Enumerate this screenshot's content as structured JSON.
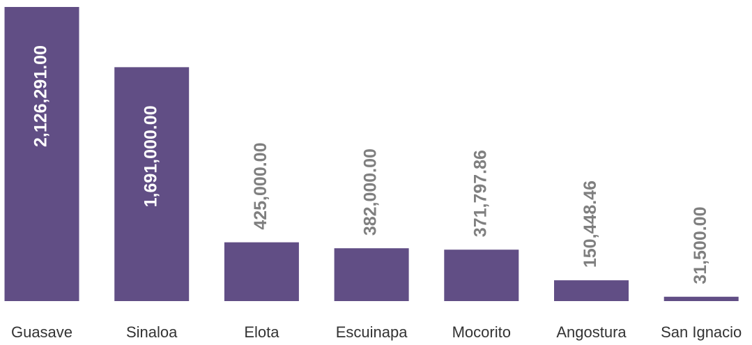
{
  "chart_data": {
    "type": "bar",
    "categories": [
      "Guasave",
      "Sinaloa",
      "Elota",
      "Escuinapa",
      "Mocorito",
      "Angostura",
      "San Ignacio"
    ],
    "values": [
      2126291,
      1691000,
      425000,
      382000,
      371797.86,
      150448.46,
      31500
    ],
    "value_labels": [
      "2,126,291.00",
      "1,691,000.00",
      "425,000.00",
      "382,000.00",
      "371,797.86",
      "150,448.46",
      "31,500.00"
    ],
    "color": "#614e85"
  }
}
